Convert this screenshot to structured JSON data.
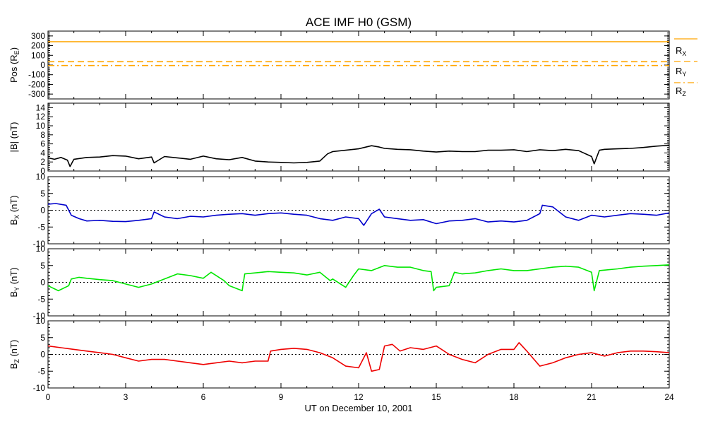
{
  "chart_data": {
    "type": "line",
    "title": "ACE IMF H0 (GSM)",
    "xlabel": "UT on December 10, 2001",
    "x_ticks": [
      "0",
      "3",
      "6",
      "9",
      "12",
      "15",
      "18",
      "21",
      "24"
    ],
    "xlim": [
      0,
      24
    ],
    "panels": [
      {
        "id": "pos",
        "ylabel": {
          "main": "Pos (R",
          "sub": "E",
          "tail": ")"
        },
        "ylim": [
          -350,
          350
        ],
        "yticks": [
          -300,
          -200,
          -100,
          0,
          100,
          200,
          300
        ],
        "series": [
          {
            "name": {
              "main": "R",
              "sub": "X"
            },
            "color": "#ffa500",
            "dash": "solid",
            "x": [
              0,
              24
            ],
            "y": [
              240,
              240
            ]
          },
          {
            "name": {
              "main": "R",
              "sub": "Y"
            },
            "color": "#ffa500",
            "dash": "dashed",
            "x": [
              0,
              24
            ],
            "y": [
              34,
              34
            ]
          },
          {
            "name": {
              "main": "R",
              "sub": "Z"
            },
            "color": "#ffa500",
            "dash": "dashdot",
            "x": [
              0,
              24
            ],
            "y": [
              -5,
              -5
            ]
          }
        ]
      },
      {
        "id": "bmag",
        "ylabel": {
          "main": "|B| (nT)",
          "sub": "",
          "tail": ""
        },
        "ylim": [
          0,
          15
        ],
        "yticks": [
          0,
          2,
          4,
          6,
          8,
          10,
          12,
          14
        ],
        "series": [
          {
            "name": null,
            "color": "#000000",
            "dash": "solid",
            "x": [
              0,
              0.25,
              0.5,
              0.75,
              0.85,
              1.0,
              1.5,
              2,
              2.5,
              3,
              3.5,
              4,
              4.1,
              4.5,
              5,
              5.5,
              6,
              6.5,
              7,
              7.5,
              8,
              8.5,
              9,
              9.5,
              10,
              10.5,
              10.8,
              11,
              11.5,
              12,
              12.5,
              12.8,
              13,
              13.5,
              14,
              14.5,
              15,
              15.5,
              16,
              16.5,
              17,
              17.5,
              18,
              18.5,
              19,
              19.5,
              20,
              20.5,
              21,
              21.1,
              21.3,
              21.5,
              22,
              22.5,
              23,
              23.5,
              24
            ],
            "y": [
              2.9,
              2.6,
              3.0,
              2.4,
              1.0,
              2.6,
              3.0,
              3.1,
              3.4,
              3.3,
              2.7,
              3.1,
              1.8,
              3.2,
              2.9,
              2.6,
              3.3,
              2.7,
              2.5,
              3.0,
              2.2,
              2.0,
              1.9,
              1.8,
              1.9,
              2.2,
              3.8,
              4.3,
              4.6,
              4.9,
              5.6,
              5.3,
              5.0,
              4.8,
              4.7,
              4.4,
              4.2,
              4.4,
              4.3,
              4.3,
              4.6,
              4.6,
              4.7,
              4.3,
              4.7,
              4.5,
              4.8,
              4.5,
              3.2,
              1.6,
              4.6,
              4.8,
              4.9,
              5.0,
              5.2,
              5.5,
              5.7
            ]
          }
        ]
      },
      {
        "id": "bx",
        "ylabel": {
          "main": "B",
          "sub": "X",
          "tail": " (nT)"
        },
        "ylim": [
          -10,
          10
        ],
        "yticks": [
          -10,
          -5,
          0,
          5,
          10
        ],
        "dotted_zero": true,
        "series": [
          {
            "name": null,
            "color": "#0000cc",
            "dash": "solid",
            "x": [
              0,
              0.3,
              0.7,
              0.9,
              1.2,
              1.5,
              2,
              2.5,
              3,
              3.5,
              4,
              4.1,
              4.5,
              5,
              5.5,
              6,
              6.5,
              7,
              7.5,
              8,
              8.5,
              9,
              9.5,
              10,
              10.5,
              11,
              11.5,
              12,
              12.2,
              12.5,
              12.8,
              13,
              13.5,
              14,
              14.5,
              15,
              15.5,
              16,
              16.5,
              17,
              17.5,
              18,
              18.5,
              19,
              19.1,
              19.5,
              20,
              20.5,
              21,
              21.5,
              22,
              22.5,
              23,
              23.5,
              24
            ],
            "y": [
              1.8,
              2.0,
              1.5,
              -1.5,
              -2.5,
              -3.2,
              -3.0,
              -3.3,
              -3.4,
              -3.0,
              -2.5,
              -0.5,
              -2.0,
              -2.5,
              -1.8,
              -2.0,
              -1.5,
              -1.2,
              -1.0,
              -1.5,
              -1.0,
              -0.8,
              -1.2,
              -1.5,
              -2.5,
              -3.0,
              -2.0,
              -2.5,
              -4.5,
              -1.0,
              0.3,
              -2.0,
              -2.5,
              -3.0,
              -2.8,
              -4.0,
              -3.2,
              -3.0,
              -2.5,
              -3.5,
              -3.2,
              -3.5,
              -3.0,
              -1.0,
              1.5,
              1.0,
              -2.0,
              -3.0,
              -1.5,
              -2.0,
              -1.5,
              -1.0,
              -1.2,
              -1.5,
              -0.8
            ]
          }
        ]
      },
      {
        "id": "by",
        "ylabel": {
          "main": "B",
          "sub": "Y",
          "tail": " (nT)"
        },
        "ylim": [
          -10,
          10
        ],
        "yticks": [
          -10,
          -5,
          0,
          5,
          10
        ],
        "dotted_zero": true,
        "series": [
          {
            "name": null,
            "color": "#00e600",
            "dash": "solid",
            "x": [
              0,
              0.4,
              0.8,
              0.9,
              1.2,
              1.5,
              2,
              2.5,
              3,
              3.5,
              4,
              4.5,
              5,
              5.5,
              6,
              6.3,
              6.8,
              7,
              7.5,
              7.6,
              8,
              8.5,
              9,
              9.5,
              10,
              10.5,
              10.9,
              11,
              11.5,
              11.8,
              12,
              12.5,
              13,
              13.5,
              14,
              14.5,
              14.8,
              14.9,
              15,
              15.5,
              15.7,
              16,
              16.5,
              17,
              17.5,
              18,
              18.5,
              19,
              19.5,
              20,
              20.5,
              21,
              21.1,
              21.3,
              22,
              22.5,
              23,
              23.5,
              24
            ],
            "y": [
              -1.0,
              -2.5,
              -1.0,
              1.0,
              1.5,
              1.2,
              0.8,
              0.5,
              -0.5,
              -1.5,
              -0.5,
              1.0,
              2.5,
              2.0,
              1.2,
              3.0,
              0.5,
              -1.0,
              -2.5,
              2.5,
              2.8,
              3.2,
              3.0,
              2.8,
              2.2,
              3.0,
              0.5,
              1.0,
              -1.5,
              2.0,
              4.0,
              3.5,
              5.0,
              4.5,
              4.5,
              3.5,
              3.2,
              -2.5,
              -1.5,
              -1.0,
              3.0,
              2.5,
              2.8,
              3.5,
              4.0,
              3.5,
              3.5,
              4.0,
              4.5,
              4.8,
              4.5,
              3.0,
              -2.5,
              3.5,
              4.0,
              4.5,
              4.8,
              5.0,
              5.2
            ]
          }
        ]
      },
      {
        "id": "bz",
        "ylabel": {
          "main": "B",
          "sub": "Z",
          "tail": " (nT)"
        },
        "ylim": [
          -10,
          10
        ],
        "yticks": [
          -10,
          -5,
          0,
          5,
          10
        ],
        "dotted_zero": true,
        "series": [
          {
            "name": null,
            "color": "#ee0000",
            "dash": "solid",
            "x": [
              0,
              0.5,
              1,
              1.5,
              2,
              2.5,
              3,
              3.5,
              4,
              4.5,
              5,
              5.5,
              6,
              6.5,
              7,
              7.5,
              8,
              8.5,
              8.6,
              9,
              9.5,
              10,
              10.5,
              11,
              11.5,
              12,
              12.3,
              12.5,
              12.8,
              13,
              13.3,
              13.6,
              14,
              14.5,
              15,
              15.5,
              16,
              16.5,
              17,
              17.5,
              18,
              18.2,
              18.5,
              19,
              19.5,
              20,
              20.5,
              21,
              21.5,
              22,
              22.5,
              23,
              23.5,
              24
            ],
            "y": [
              2.5,
              2.0,
              1.5,
              1.0,
              0.5,
              0,
              -1.0,
              -2.0,
              -1.5,
              -1.5,
              -2.0,
              -2.5,
              -3.0,
              -2.5,
              -2.0,
              -2.5,
              -2.0,
              -2.0,
              1.0,
              1.5,
              1.8,
              1.5,
              0.5,
              -1.0,
              -3.5,
              -4.0,
              0.5,
              -5.0,
              -4.5,
              2.5,
              3.0,
              1.0,
              2.0,
              1.5,
              2.5,
              0,
              -1.5,
              -2.5,
              0,
              1.5,
              1.5,
              3.5,
              1.0,
              -3.5,
              -2.5,
              -1.0,
              0,
              0.5,
              -0.5,
              0.5,
              1.0,
              1.0,
              0.8,
              0.5
            ]
          }
        ]
      }
    ],
    "grid": false,
    "legend_position": "right of top panel"
  }
}
